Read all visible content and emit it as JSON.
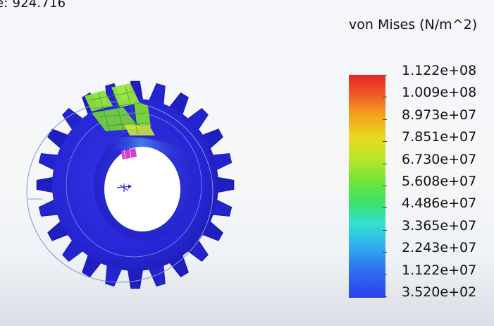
{
  "plot": {
    "scale_text": "e: 924.716",
    "legend_title": "von Mises (N/m^2)",
    "legend_values": [
      "1.122e+08",
      "1.009e+08",
      "8.973e+07",
      "7.851e+07",
      "6.730e+07",
      "5.608e+07",
      "4.486e+07",
      "3.365e+07",
      "2.243e+07",
      "1.122e+07",
      "3.520e+02"
    ],
    "legend_colors": {
      "max": "#e8232a",
      "mid": "#6ee436",
      "min": "#2b3fee"
    },
    "model": {
      "gear_color": "#2626d6",
      "gear_dark": "#1b1bb0",
      "hot_spot_color": "#8be03a",
      "load_marker_color": "#d63bd6"
    }
  }
}
